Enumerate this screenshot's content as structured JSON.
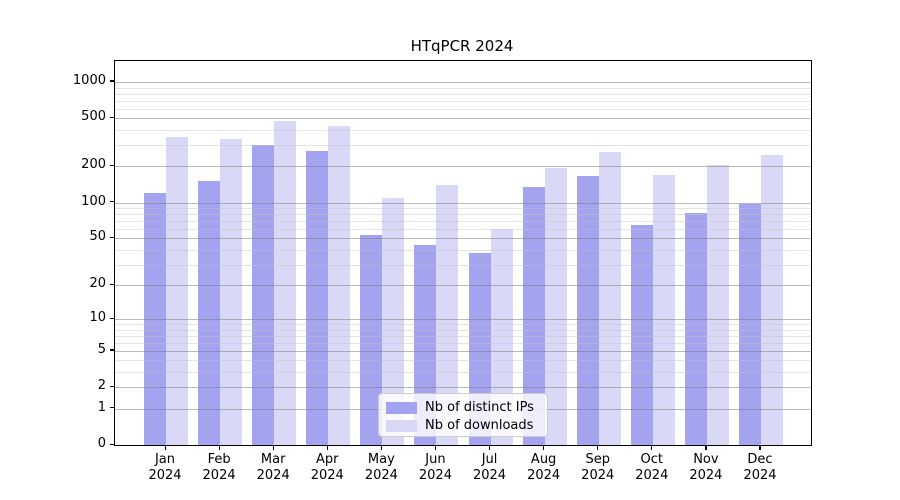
{
  "title": "HTqPCR 2024",
  "legend": {
    "items": [
      {
        "label": "Nb of distinct IPs",
        "color": "#a3a3f0"
      },
      {
        "label": "Nb of downloads",
        "color": "#d9d9f7"
      }
    ]
  },
  "axes": {
    "ytick_labels": [
      "0",
      "1",
      "2",
      "5",
      "10",
      "20",
      "50",
      "100",
      "200",
      "500",
      "1000"
    ],
    "x_year_label": "2024"
  },
  "chart_data": {
    "type": "bar",
    "title": "HTqPCR 2024",
    "categories": [
      "Jan 2024",
      "Feb 2024",
      "Mar 2024",
      "Apr 2024",
      "May 2024",
      "Jun 2024",
      "Jul 2024",
      "Aug 2024",
      "Sep 2024",
      "Oct 2024",
      "Nov 2024",
      "Dec 2024"
    ],
    "months": [
      "Jan",
      "Feb",
      "Mar",
      "Apr",
      "May",
      "Jun",
      "Jul",
      "Aug",
      "Sep",
      "Oct",
      "Nov",
      "Dec"
    ],
    "series": [
      {
        "name": "Nb of distinct IPs",
        "color": "#a3a3f0",
        "values": [
          120,
          150,
          300,
          270,
          53,
          44,
          38,
          135,
          168,
          65,
          82,
          97
        ]
      },
      {
        "name": "Nb of downloads",
        "color": "#d9d9f7",
        "values": [
          350,
          340,
          475,
          435,
          110,
          140,
          60,
          195,
          265,
          170,
          205,
          250
        ]
      }
    ],
    "yscale": "log(value+1)",
    "yticks": [
      0,
      1,
      2,
      5,
      10,
      20,
      50,
      100,
      200,
      500,
      1000
    ],
    "minor_gridlines": [
      3,
      4,
      6,
      7,
      8,
      9,
      30,
      40,
      60,
      70,
      80,
      90,
      300,
      400,
      600,
      700,
      800,
      900
    ],
    "ylim": [
      0,
      1490
    ],
    "grid": "horizontal, drawn over bars",
    "legend_position": "lower center",
    "bar_colors": {
      "distinct_ips": "#a3a3f0",
      "downloads": "#d9d9f7"
    }
  }
}
